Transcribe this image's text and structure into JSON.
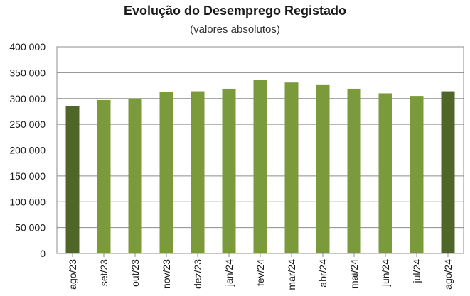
{
  "chart_data": {
    "type": "bar",
    "title": "Evolução do Desemprego Registado",
    "subtitle": "(valores absolutos)",
    "categories": [
      "ago/23",
      "set/23",
      "out/23",
      "nov/23",
      "dez/23",
      "jan/24",
      "fev/24",
      "mar/24",
      "abr/24",
      "mai/24",
      "jun/24",
      "jul/24",
      "ago/24"
    ],
    "values": [
      285000,
      297000,
      300000,
      312000,
      314000,
      319000,
      336000,
      331000,
      326000,
      319000,
      310000,
      305000,
      314000
    ],
    "highlight": [
      true,
      false,
      false,
      false,
      false,
      false,
      false,
      false,
      false,
      false,
      false,
      false,
      true
    ],
    "ylim": [
      0,
      400000
    ],
    "yticks": [
      0,
      50000,
      100000,
      150000,
      200000,
      250000,
      300000,
      350000,
      400000
    ],
    "ytick_labels": [
      "0",
      "50 000",
      "100 000",
      "150 000",
      "200 000",
      "250 000",
      "300 000",
      "350 000",
      "400 000"
    ],
    "grid": true,
    "colors": {
      "bar": "#7a9a3c",
      "highlight": "#4f6628",
      "grid": "#8c8c8c",
      "frame": "#8c8c8c"
    }
  }
}
